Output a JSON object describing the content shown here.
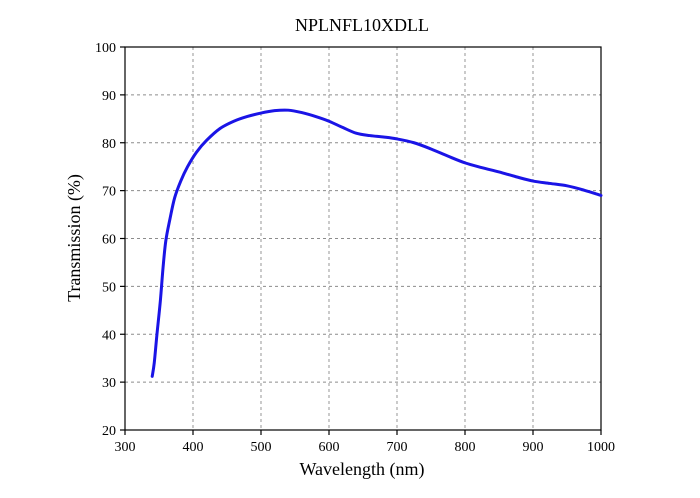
{
  "chart_data": {
    "type": "line",
    "title": "NPLNFL10XDLL",
    "xlabel": "Wavelength (nm)",
    "ylabel": "Transmission (%)",
    "xlim": [
      300,
      1000
    ],
    "ylim": [
      20,
      100
    ],
    "xticks": [
      300,
      400,
      500,
      600,
      700,
      800,
      900,
      1000
    ],
    "yticks": [
      20,
      30,
      40,
      50,
      60,
      70,
      80,
      90,
      100
    ],
    "grid": true,
    "series": [
      {
        "color": "#1a14e6",
        "x": [
          340,
          343,
          347,
          352,
          356,
          360,
          366,
          373,
          382,
          392,
          405,
          420,
          440,
          460,
          480,
          500,
          520,
          540,
          560,
          580,
          600,
          620,
          640,
          660,
          680,
          700,
          725,
          750,
          775,
          800,
          825,
          850,
          875,
          900,
          925,
          950,
          975,
          1000
        ],
        "y": [
          31.2,
          34,
          40,
          47,
          54,
          59.5,
          64,
          68.5,
          72,
          75,
          78,
          80.5,
          83,
          84.5,
          85.5,
          86.2,
          86.7,
          86.8,
          86.3,
          85.5,
          84.5,
          83.2,
          82,
          81.5,
          81.2,
          80.8,
          80,
          78.7,
          77.2,
          75.8,
          74.8,
          73.9,
          72.9,
          72,
          71.5,
          71,
          70.1,
          69
        ]
      }
    ]
  }
}
